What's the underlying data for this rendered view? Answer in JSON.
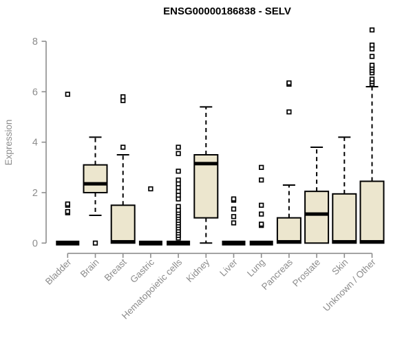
{
  "colors": {
    "background": "#ffffff",
    "box_fill": "#ece6ce",
    "box_stroke": "#000000",
    "median": "#000000",
    "whisker": "#000000",
    "outlier_fill": "#ffffff",
    "axis": "#8c8c8c",
    "tick_label": "#8c8c8c",
    "title": "#000000"
  },
  "chart_data": {
    "type": "boxplot",
    "title": "ENSG00000186838 - SELV",
    "ylabel": "Expression",
    "xlabel": "",
    "ylim": [
      0,
      8.5
    ],
    "yticks": [
      0,
      2,
      4,
      6,
      8
    ],
    "grid": false,
    "legend": false,
    "categories": [
      "Bladder",
      "Brain",
      "Breast",
      "Gastric",
      "Hematopoietic cells",
      "Kidney",
      "Liver",
      "Lung",
      "Pancreas",
      "Prostate",
      "Skin",
      "Unknown / Other"
    ],
    "boxes": [
      {
        "category": "Bladder",
        "whisker_low": 0,
        "q1": 0,
        "median": 0,
        "q3": 0,
        "whisker_high": 0,
        "outliers": [
          1.2,
          1.25,
          1.5,
          1.55,
          5.9
        ]
      },
      {
        "category": "Brain",
        "whisker_low": 1.1,
        "q1": 2.0,
        "median": 2.35,
        "q3": 3.1,
        "whisker_high": 4.2,
        "outliers": [
          0
        ]
      },
      {
        "category": "Breast",
        "whisker_low": 0,
        "q1": 0,
        "median": 0.05,
        "q3": 1.5,
        "whisker_high": 3.5,
        "outliers": [
          3.8,
          5.65,
          5.8
        ]
      },
      {
        "category": "Gastric",
        "whisker_low": 0,
        "q1": 0,
        "median": 0,
        "q3": 0,
        "whisker_high": 0,
        "outliers": [
          2.15
        ]
      },
      {
        "category": "Hematopoietic cells",
        "whisker_low": 0,
        "q1": 0,
        "median": 0,
        "q3": 0,
        "whisker_high": 0,
        "outliers": [
          0.2,
          0.3,
          0.4,
          0.5,
          0.6,
          0.7,
          0.8,
          0.9,
          1.0,
          1.1,
          1.2,
          1.3,
          1.45,
          1.75,
          1.9,
          2.05,
          2.2,
          2.35,
          2.5,
          2.85,
          3.55,
          3.8
        ]
      },
      {
        "category": "Kidney",
        "whisker_low": 0,
        "q1": 1.0,
        "median": 3.15,
        "q3": 3.5,
        "whisker_high": 5.4,
        "outliers": []
      },
      {
        "category": "Liver",
        "whisker_low": 0,
        "q1": 0,
        "median": 0,
        "q3": 0,
        "whisker_high": 0,
        "outliers": [
          0.8,
          1.05,
          1.35,
          1.7,
          1.75
        ]
      },
      {
        "category": "Lung",
        "whisker_low": 0,
        "q1": 0,
        "median": 0,
        "q3": 0,
        "whisker_high": 0,
        "outliers": [
          0.7,
          0.75,
          1.15,
          1.5,
          2.5,
          3.0
        ]
      },
      {
        "category": "Pancreas",
        "whisker_low": 0,
        "q1": 0,
        "median": 0.05,
        "q3": 1.0,
        "whisker_high": 2.3,
        "outliers": [
          5.2,
          6.3,
          6.35
        ]
      },
      {
        "category": "Prostate",
        "whisker_low": 0,
        "q1": 0,
        "median": 1.15,
        "q3": 2.05,
        "whisker_high": 3.8,
        "outliers": []
      },
      {
        "category": "Skin",
        "whisker_low": 0,
        "q1": 0,
        "median": 0.05,
        "q3": 1.95,
        "whisker_high": 4.2,
        "outliers": []
      },
      {
        "category": "Unknown / Other",
        "whisker_low": 0,
        "q1": 0,
        "median": 0.05,
        "q3": 2.45,
        "whisker_high": 6.2,
        "outliers": [
          6.3,
          6.4,
          6.5,
          6.75,
          6.85,
          6.95,
          7.05,
          7.4,
          7.7,
          7.85,
          8.45
        ]
      }
    ]
  }
}
